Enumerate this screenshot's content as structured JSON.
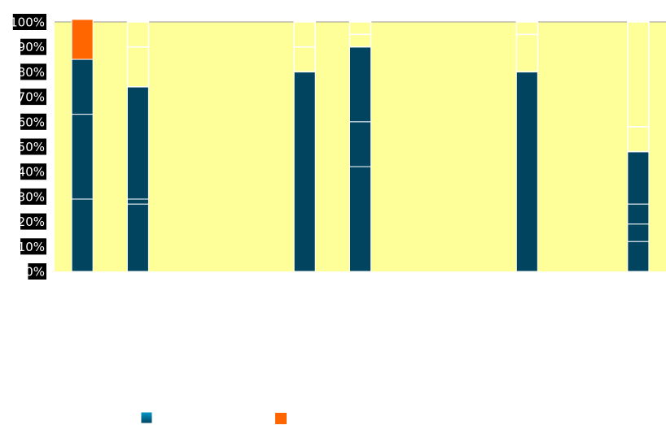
{
  "chart_data": {
    "type": "bar",
    "stacked": true,
    "percent": true,
    "ylim": [
      0,
      100
    ],
    "y_ticks": [
      "0%",
      "10%",
      "20%",
      "30%",
      "40%",
      "50%",
      "60%",
      "70%",
      "80%",
      "90%",
      "100%"
    ],
    "grid": false,
    "legend_position": "bottom",
    "colors": {
      "plot_background": "#FFFF99",
      "tick_label_background": "#000000",
      "blue_top": "#0099CC",
      "blue_bottom": "#004460",
      "orange": "#FF6600",
      "segment_border": "#ffffff"
    },
    "slots": 11,
    "series": [
      {
        "color_key": "blue",
        "label": "",
        "stacks": [
          [
            29,
            34,
            22
          ],
          [
            27,
            2,
            45
          ],
          null,
          null,
          [
            80
          ],
          [
            42,
            18,
            30
          ],
          null,
          null,
          [
            80
          ],
          null,
          [
            12,
            7,
            8,
            21
          ]
        ]
      },
      {
        "color_key": "orange",
        "label": "",
        "stacks": [
          [
            16
          ],
          null,
          null,
          null,
          null,
          null,
          null,
          null,
          null,
          null,
          null
        ]
      }
    ],
    "empty_segments": [
      [],
      [
        16,
        10
      ],
      [],
      [],
      [
        10,
        10
      ],
      [
        5,
        5
      ],
      [],
      [],
      [
        15,
        5
      ],
      [],
      [
        10,
        42
      ]
    ]
  }
}
